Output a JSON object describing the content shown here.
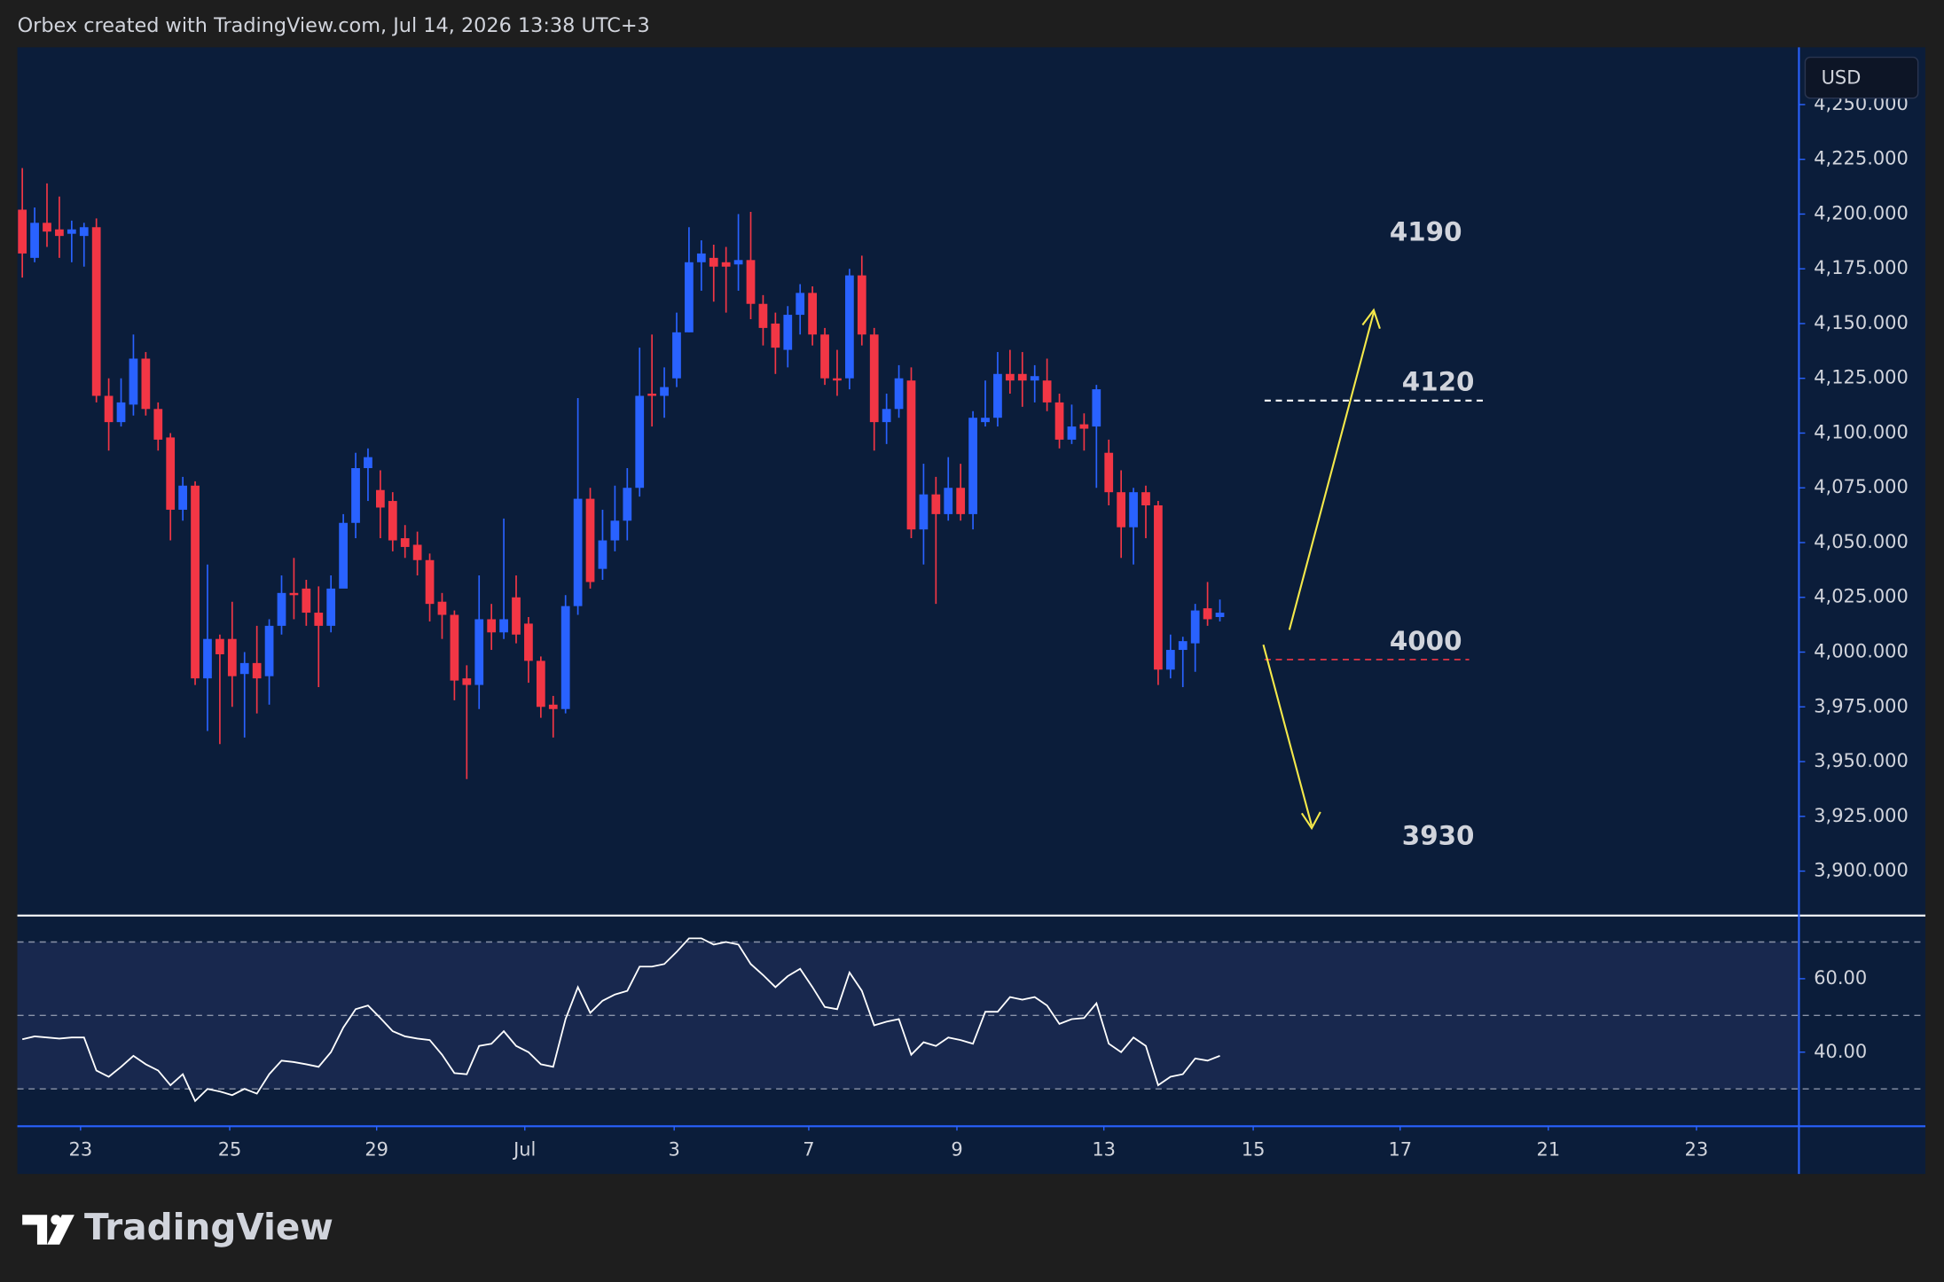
{
  "chart_data": {
    "type": "candlestick",
    "header": "Orbex created with TradingView.com, Jul 14, 2026 13:38 UTC+3",
    "currency": "USD",
    "brand": "TradingView",
    "up_color": "#2962ff",
    "down_color": "#f23645",
    "open": [
      4202,
      4180,
      4196,
      4193,
      4191,
      4190,
      4194,
      4117,
      4105,
      4113,
      4134,
      4111,
      4098,
      4065,
      4076,
      3988,
      4006,
      4006,
      3990,
      3995,
      3989,
      4012,
      4027,
      4029,
      4018,
      4012,
      4029,
      4059,
      4084,
      4074,
      4069,
      4052,
      4049,
      4042,
      4023,
      4017,
      3988,
      3985,
      4015,
      4009,
      4025,
      4013,
      3996,
      3976,
      3974,
      4021,
      4070,
      4038,
      4051,
      4060,
      4075,
      4118,
      4117,
      4125,
      4146,
      4178,
      4180,
      4178,
      4177,
      4179,
      4159,
      4150,
      4138,
      4154,
      4164,
      4145,
      4125,
      4125,
      4172,
      4145,
      4105,
      4111,
      4124,
      4056,
      4072,
      4063,
      4075,
      4063,
      4105,
      4107,
      4127,
      4127,
      4124,
      4124,
      4114,
      4097,
      4104,
      4103,
      4091,
      4073,
      4057,
      4073,
      4067,
      3992,
      4001,
      4004,
      4020,
      4016
    ],
    "high": [
      4221,
      4203,
      4214,
      4208,
      4197,
      4196,
      4198,
      4125,
      4125,
      4145,
      4137,
      4114,
      4100,
      4080,
      4078,
      4040,
      4008,
      4023,
      4000,
      4012,
      4015,
      4035,
      4043,
      4033,
      4030,
      4035,
      4063,
      4091,
      4093,
      4083,
      4073,
      4058,
      4055,
      4045,
      4027,
      4019,
      3994,
      4035,
      4022,
      4061,
      4035,
      4016,
      3998,
      3980,
      4026,
      4116,
      4075,
      4065,
      4076,
      4084,
      4139,
      4145,
      4130,
      4155,
      4194,
      4188,
      4186,
      4185,
      4200,
      4201,
      4163,
      4155,
      4158,
      4168,
      4167,
      4148,
      4138,
      4175,
      4181,
      4148,
      4118,
      4131,
      4130,
      4086,
      4080,
      4089,
      4086,
      4110,
      4124,
      4137,
      4138,
      4137,
      4131,
      4134,
      4118,
      4113,
      4109,
      4122,
      4097,
      4083,
      4075,
      4076,
      4069,
      4008,
      4007,
      4022,
      4032,
      4024
    ],
    "low": [
      4171,
      4178,
      4185,
      4180,
      4178,
      4176,
      4114,
      4092,
      4103,
      4108,
      4108,
      4092,
      4051,
      4060,
      3985,
      3964,
      3958,
      3975,
      3961,
      3972,
      3976,
      4008,
      4015,
      4012,
      3984,
      4009,
      4031,
      4052,
      4069,
      4052,
      4046,
      4043,
      4035,
      4014,
      4006,
      3978,
      3942,
      3974,
      4001,
      4006,
      4004,
      3986,
      3970,
      3961,
      3972,
      4017,
      4029,
      4033,
      4046,
      4051,
      4071,
      4103,
      4107,
      4121,
      4146,
      4165,
      4160,
      4155,
      4165,
      4152,
      4140,
      4127,
      4130,
      4145,
      4140,
      4122,
      4117,
      4120,
      4140,
      4092,
      4095,
      4107,
      4052,
      4040,
      4022,
      4060,
      4060,
      4056,
      4103,
      4103,
      4118,
      4112,
      4114,
      4110,
      4093,
      4095,
      4092,
      4075,
      4067,
      4043,
      4040,
      4052,
      3985,
      3988,
      3984,
      3991,
      4012,
      4014
    ],
    "close": [
      4182,
      4196,
      4192,
      4190,
      4193,
      4194,
      4117,
      4105,
      4114,
      4134,
      4111,
      4097,
      4065,
      4076,
      3988,
      4006,
      3999,
      3989,
      3995,
      3988,
      4012,
      4027,
      4026,
      4018,
      4012,
      4029,
      4059,
      4084,
      4089,
      4066,
      4051,
      4048,
      4042,
      4022,
      4017,
      3987,
      3985,
      4015,
      4009,
      4015,
      4008,
      3996,
      3975,
      3974,
      4021,
      4070,
      4032,
      4051,
      4060,
      4075,
      4117,
      4117,
      4121,
      4146,
      4178,
      4182,
      4176,
      4176,
      4179,
      4159,
      4148,
      4139,
      4154,
      4164,
      4145,
      4125,
      4124,
      4172,
      4145,
      4105,
      4111,
      4125,
      4056,
      4072,
      4063,
      4075,
      4063,
      4107,
      4107,
      4127,
      4124,
      4124,
      4126,
      4114,
      4097,
      4103,
      4102,
      4120,
      4073,
      4057,
      4073,
      4067,
      3992,
      4001,
      4005,
      4019,
      4015,
      4018
    ],
    "xlim": [
      -0.3,
      143.9
    ],
    "xticks": [
      {
        "value": 4.72,
        "label": "23"
      },
      {
        "value": 16.8,
        "label": "25"
      },
      {
        "value": 28.7,
        "label": "29"
      },
      {
        "value": 40.7,
        "label": "Jul"
      },
      {
        "value": 52.8,
        "label": "3"
      },
      {
        "value": 63.7,
        "label": "7"
      },
      {
        "value": 75.7,
        "label": "9"
      },
      {
        "value": 87.6,
        "label": "13"
      },
      {
        "value": 99.7,
        "label": "15"
      },
      {
        "value": 111.6,
        "label": "17"
      },
      {
        "value": 123.6,
        "label": "21"
      },
      {
        "value": 135.6,
        "label": "23"
      }
    ],
    "ylim": [
      3880,
      4275
    ],
    "yticks": [
      {
        "value": 3900,
        "label": "3,900.000"
      },
      {
        "value": 3925,
        "label": "3,925.000"
      },
      {
        "value": 3950,
        "label": "3,950.000"
      },
      {
        "value": 3975,
        "label": "3,975.000"
      },
      {
        "value": 4000,
        "label": "4,000.000"
      },
      {
        "value": 4025,
        "label": "4,025.000"
      },
      {
        "value": 4050,
        "label": "4,050.000"
      },
      {
        "value": 4075,
        "label": "4,075.000"
      },
      {
        "value": 4100,
        "label": "4,100.000"
      },
      {
        "value": 4125,
        "label": "4,125.000"
      },
      {
        "value": 4150,
        "label": "4,150.000"
      },
      {
        "value": 4175,
        "label": "4,175.000"
      },
      {
        "value": 4200,
        "label": "4,200.000"
      },
      {
        "value": 4225,
        "label": "4,225.000"
      },
      {
        "value": 4250,
        "label": "4,250.000"
      }
    ],
    "annotations": [
      "4190",
      "4120",
      "4000",
      "3930"
    ],
    "rsi": {
      "color": "#ffffff",
      "values": [
        43.5,
        44.3,
        44,
        43.7,
        44,
        44,
        35,
        33.3,
        36,
        39,
        36.7,
        35,
        31,
        34,
        26.7,
        30,
        29.3,
        28.3,
        30,
        28.7,
        34,
        37.7,
        37.3,
        36.7,
        36,
        40,
        46.7,
        51.7,
        52.7,
        49.3,
        45.7,
        44.3,
        43.7,
        43.3,
        39.3,
        34.3,
        34,
        41.7,
        42.3,
        45.7,
        41.7,
        40,
        36.7,
        36,
        49,
        57.7,
        50.7,
        54,
        55.7,
        56.7,
        63.3,
        63.3,
        64,
        67.3,
        71,
        71,
        69.3,
        70,
        69.3,
        64,
        61,
        57.7,
        60.7,
        62.7,
        57.7,
        52.3,
        51.7,
        61.7,
        56.7,
        47.3,
        48.3,
        49,
        39.3,
        42.7,
        41.7,
        44,
        43.3,
        42.3,
        51,
        51,
        55,
        54.3,
        55,
        52.7,
        47.7,
        49,
        49.3,
        53.3,
        42.3,
        40,
        44,
        41.7,
        31,
        33.3,
        34,
        38.3,
        37.7,
        39
      ],
      "ylim": [
        20,
        76.7
      ],
      "yticks": [
        {
          "value": 40,
          "label": "40.00"
        },
        {
          "value": 60,
          "label": "60.00"
        }
      ],
      "levels": [
        30,
        50,
        70
      ]
    }
  }
}
